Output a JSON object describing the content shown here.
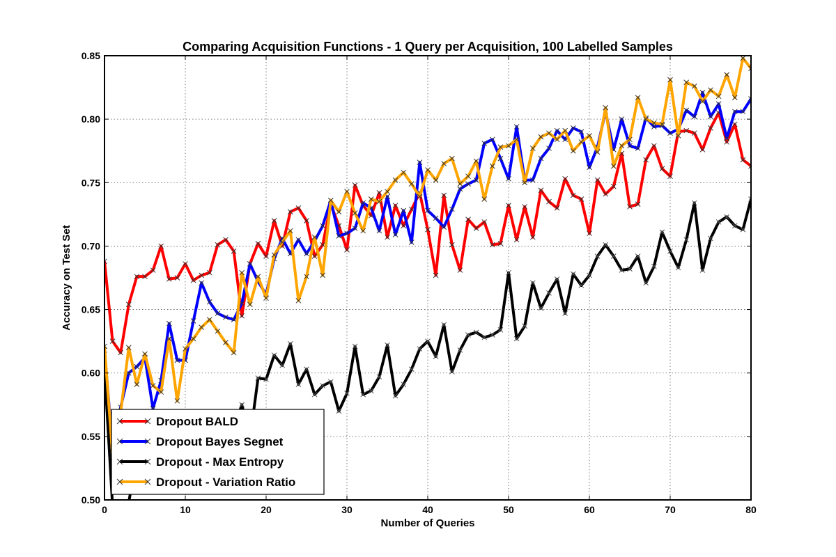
{
  "chart_data": {
    "type": "line",
    "title": "Comparing Acquisition Functions - 1 Query per Acquisition, 100 Labelled Samples",
    "xlabel": "Number of Queries",
    "ylabel": "Accuracy on Test Set",
    "xlim": [
      0,
      80
    ],
    "ylim": [
      0.5,
      0.85
    ],
    "xticks": [
      0,
      10,
      20,
      30,
      40,
      50,
      60,
      70,
      80
    ],
    "xtick_labels": [
      "0",
      "10",
      "20",
      "30",
      "40",
      "50",
      "60",
      "70",
      "80"
    ],
    "yticks": [
      0.5,
      0.55,
      0.6,
      0.65,
      0.7,
      0.75,
      0.8,
      0.85
    ],
    "ytick_labels": [
      "0.50",
      "0.55",
      "0.60",
      "0.65",
      "0.70",
      "0.75",
      "0.80",
      "0.85"
    ],
    "grid": true,
    "legend_position": "bottom-left",
    "series": [
      {
        "name": "Dropout BALD",
        "color": "#ff0000",
        "values": [
          0.688,
          0.625,
          0.616,
          0.654,
          0.676,
          0.676,
          0.681,
          0.7,
          0.674,
          0.675,
          0.686,
          0.673,
          0.677,
          0.679,
          0.701,
          0.705,
          0.696,
          0.645,
          0.686,
          0.702,
          0.692,
          0.72,
          0.7,
          0.727,
          0.73,
          0.72,
          0.692,
          0.701,
          0.733,
          0.716,
          0.697,
          0.748,
          0.732,
          0.724,
          0.742,
          0.707,
          0.732,
          0.716,
          0.729,
          0.742,
          0.713,
          0.677,
          0.74,
          0.701,
          0.681,
          0.721,
          0.714,
          0.719,
          0.701,
          0.702,
          0.732,
          0.705,
          0.731,
          0.707,
          0.744,
          0.735,
          0.73,
          0.753,
          0.74,
          0.737,
          0.71,
          0.752,
          0.741,
          0.747,
          0.773,
          0.731,
          0.733,
          0.768,
          0.779,
          0.761,
          0.755,
          0.79,
          0.791,
          0.789,
          0.776,
          0.793,
          0.805,
          0.782,
          0.796,
          0.768,
          0.763
        ]
      },
      {
        "name": "Dropout Bayes Segnet",
        "color": "#0000ff",
        "values": [
          0.618,
          0.541,
          0.573,
          0.6,
          0.605,
          0.612,
          0.572,
          0.594,
          0.639,
          0.61,
          0.61,
          0.641,
          0.671,
          0.656,
          0.647,
          0.644,
          0.642,
          0.655,
          0.686,
          0.672,
          0.662,
          0.69,
          0.706,
          0.694,
          0.705,
          0.694,
          0.704,
          0.716,
          0.736,
          0.708,
          0.71,
          0.714,
          0.734,
          0.73,
          0.712,
          0.739,
          0.709,
          0.728,
          0.703,
          0.766,
          0.728,
          0.722,
          0.715,
          0.729,
          0.745,
          0.749,
          0.752,
          0.781,
          0.784,
          0.769,
          0.753,
          0.794,
          0.752,
          0.752,
          0.769,
          0.777,
          0.791,
          0.784,
          0.793,
          0.79,
          0.762,
          0.778,
          0.806,
          0.776,
          0.8,
          0.779,
          0.777,
          0.801,
          0.794,
          0.795,
          0.789,
          0.792,
          0.807,
          0.802,
          0.821,
          0.802,
          0.812,
          0.785,
          0.806,
          0.806,
          0.816
        ]
      },
      {
        "name": "Dropout - Max Entropy",
        "color": "#000000",
        "values": [
          0.604,
          0.495,
          0.493,
          0.498,
          0.534,
          0.526,
          0.522,
          0.521,
          0.545,
          0.548,
          0.552,
          0.535,
          0.558,
          0.528,
          0.561,
          0.553,
          0.556,
          0.575,
          0.548,
          0.596,
          0.595,
          0.614,
          0.606,
          0.623,
          0.591,
          0.603,
          0.583,
          0.59,
          0.593,
          0.57,
          0.584,
          0.621,
          0.583,
          0.586,
          0.597,
          0.622,
          0.582,
          0.591,
          0.603,
          0.619,
          0.625,
          0.613,
          0.638,
          0.601,
          0.618,
          0.63,
          0.632,
          0.628,
          0.63,
          0.634,
          0.679,
          0.627,
          0.637,
          0.671,
          0.651,
          0.663,
          0.674,
          0.647,
          0.678,
          0.669,
          0.677,
          0.692,
          0.701,
          0.692,
          0.681,
          0.682,
          0.692,
          0.671,
          0.684,
          0.711,
          0.696,
          0.683,
          0.705,
          0.734,
          0.681,
          0.706,
          0.719,
          0.723,
          0.716,
          0.713,
          0.737
        ]
      },
      {
        "name": "Dropout - Variation Ratio",
        "color": "#ffa500",
        "values": [
          0.621,
          0.535,
          0.569,
          0.62,
          0.591,
          0.615,
          0.59,
          0.585,
          0.627,
          0.578,
          0.619,
          0.627,
          0.636,
          0.642,
          0.633,
          0.624,
          0.616,
          0.679,
          0.654,
          0.676,
          0.659,
          0.693,
          0.703,
          0.712,
          0.657,
          0.676,
          0.707,
          0.677,
          0.736,
          0.727,
          0.743,
          0.726,
          0.712,
          0.737,
          0.735,
          0.743,
          0.752,
          0.758,
          0.749,
          0.739,
          0.76,
          0.752,
          0.765,
          0.769,
          0.749,
          0.755,
          0.767,
          0.737,
          0.763,
          0.778,
          0.779,
          0.784,
          0.75,
          0.777,
          0.786,
          0.789,
          0.784,
          0.791,
          0.775,
          0.782,
          0.787,
          0.774,
          0.809,
          0.763,
          0.779,
          0.784,
          0.817,
          0.8,
          0.797,
          0.796,
          0.831,
          0.787,
          0.829,
          0.826,
          0.814,
          0.823,
          0.818,
          0.835,
          0.817,
          0.848,
          0.84
        ]
      }
    ]
  }
}
